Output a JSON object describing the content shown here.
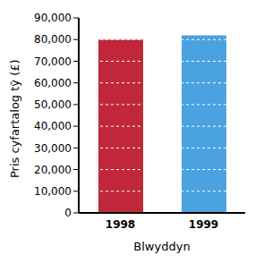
{
  "chart_data": {
    "type": "bar",
    "x_label": "Blwyddyn",
    "y_label": "Pris cyfartalog tŷ (£)",
    "categories": [
      "1998",
      "1999"
    ],
    "values": [
      80000,
      82000
    ],
    "colors": [
      "#c0283a",
      "#4aa3df"
    ],
    "ylim": [
      0,
      90000
    ],
    "yticks": [
      0,
      {
        "value": 10000,
        "label": "10,000"
      },
      {
        "value": 20000,
        "label": "20,000"
      },
      {
        "value": 30000,
        "label": "30,000"
      },
      {
        "value": 40000,
        "label": "40,000"
      },
      {
        "value": 50000,
        "label": "50,000"
      },
      {
        "value": 60000,
        "label": "60,000"
      },
      {
        "value": 70000,
        "label": "70,000"
      },
      {
        "value": 80000,
        "label": "80,000"
      },
      {
        "value": 90000,
        "label": "90,000"
      }
    ],
    "grid": true
  }
}
